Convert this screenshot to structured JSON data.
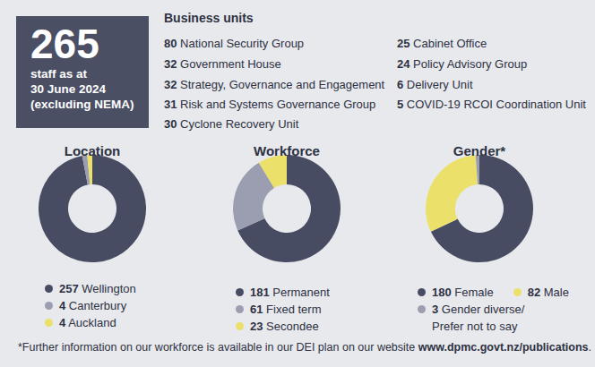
{
  "header": {
    "count": 265,
    "lines": [
      "staff as at",
      "30 June 2024",
      "(excluding NEMA)"
    ]
  },
  "business_units": {
    "title": "Business units",
    "units": [
      {
        "count": 80,
        "name": "National Security Group"
      },
      {
        "count": 32,
        "name": "Government House"
      },
      {
        "count": 32,
        "name": "Strategy, Governance and Engagement"
      },
      {
        "count": 31,
        "name": "Risk and Systems Governance Group"
      },
      {
        "count": 30,
        "name": "Cyclone Recovery Unit"
      },
      {
        "count": 25,
        "name": "Cabinet Office"
      },
      {
        "count": 24,
        "name": "Policy Advisory Group"
      },
      {
        "count": 6,
        "name": "Delivery Unit"
      },
      {
        "count": 5,
        "name": "COVID-19 RCOI Coordination Unit"
      }
    ]
  },
  "chart_data": [
    {
      "type": "pie",
      "title": "Location",
      "categories": [
        "Wellington",
        "Canterbury",
        "Auckland"
      ],
      "values": [
        257,
        4,
        4
      ],
      "colors": [
        "#474c62",
        "#9b9eb0",
        "#ebe06a"
      ]
    },
    {
      "type": "pie",
      "title": "Workforce",
      "categories": [
        "Permanent",
        "Fixed term",
        "Secondee"
      ],
      "values": [
        181,
        61,
        23
      ],
      "colors": [
        "#474c62",
        "#9b9eb0",
        "#ebe06a"
      ]
    },
    {
      "type": "pie",
      "title": "Gender*",
      "categories": [
        "Female",
        "Male",
        "Gender diverse/ Prefer not to say"
      ],
      "values": [
        180,
        82,
        3
      ],
      "colors": [
        "#474c62",
        "#ebe06a",
        "#9b9eb0"
      ]
    }
  ],
  "footnote": {
    "text": "*Further information on our workforce is available in our DEI plan on our website ",
    "link": "www.dpmc.govt.nz/publications",
    "end": "."
  }
}
